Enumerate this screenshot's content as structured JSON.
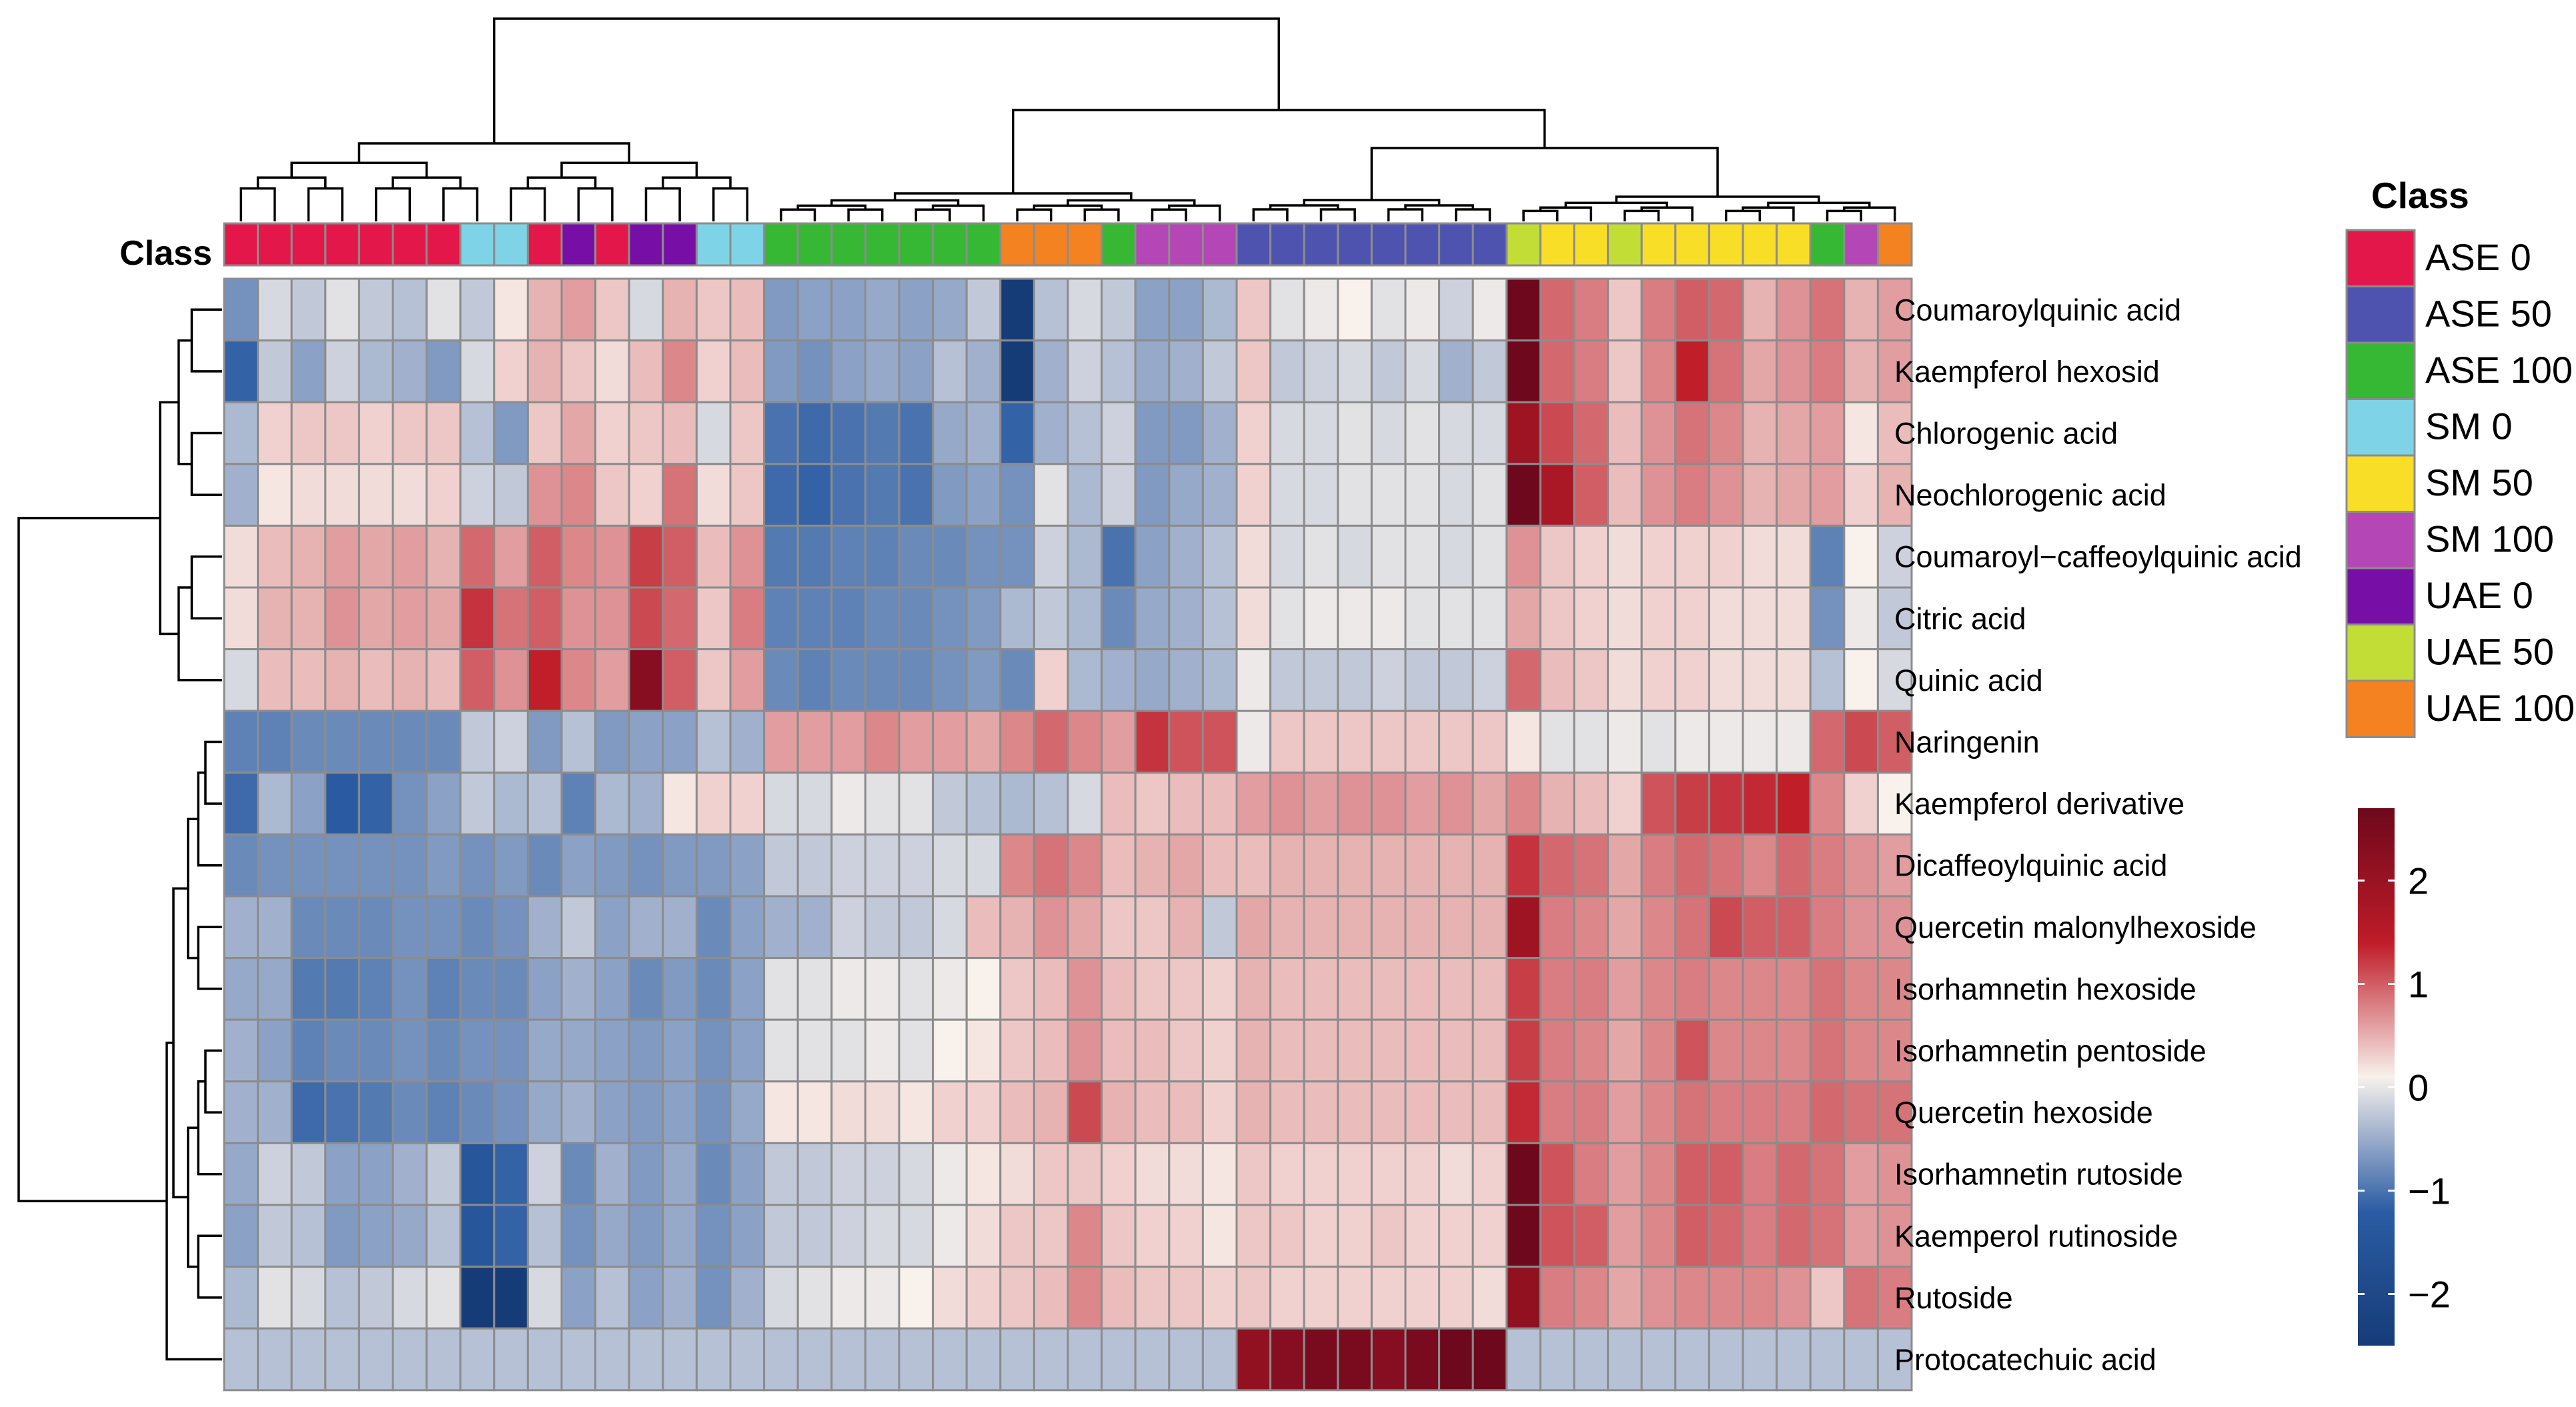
{
  "chart_data": {
    "type": "heatmap",
    "title": "",
    "class_annotation_label": "Class",
    "legend_title": "Class",
    "classes": [
      {
        "name": "ASE 0",
        "color": "#E3174A"
      },
      {
        "name": "ASE 50",
        "color": "#4F53B0"
      },
      {
        "name": "ASE 100",
        "color": "#36B834"
      },
      {
        "name": "SM 0",
        "color": "#7ED4E6"
      },
      {
        "name": "SM 50",
        "color": "#F9DE28"
      },
      {
        "name": "SM 100",
        "color": "#B446B5"
      },
      {
        "name": "UAE 0",
        "color": "#770FA6"
      },
      {
        "name": "UAE 50",
        "color": "#C2DE36"
      },
      {
        "name": "UAE 100",
        "color": "#F58221"
      }
    ],
    "column_classes": [
      "ASE 0",
      "ASE 0",
      "ASE 0",
      "ASE 0",
      "ASE 0",
      "ASE 0",
      "ASE 0",
      "SM 0",
      "SM 0",
      "ASE 0",
      "UAE 0",
      "ASE 0",
      "UAE 0",
      "UAE 0",
      "SM 0",
      "SM 0",
      "ASE 100",
      "ASE 100",
      "ASE 100",
      "ASE 100",
      "ASE 100",
      "ASE 100",
      "ASE 100",
      "UAE 100",
      "UAE 100",
      "UAE 100",
      "ASE 100",
      "SM 100",
      "SM 100",
      "SM 100",
      "ASE 50",
      "ASE 50",
      "ASE 50",
      "ASE 50",
      "ASE 50",
      "ASE 50",
      "ASE 50",
      "ASE 50",
      "UAE 50",
      "SM 50",
      "SM 50",
      "UAE 50",
      "SM 50",
      "SM 50",
      "SM 50",
      "SM 50",
      "SM 50",
      "ASE 100",
      "SM 100",
      "UAE 100"
    ],
    "rows": [
      "Coumaroylquinic acid",
      "Kaempferol hexosid",
      "Chlorogenic acid",
      "Neochlorogenic acid",
      "Coumaroyl−caffeoylquinic acid",
      "Citric acid",
      "Quinic acid",
      "Naringenin",
      "Kaempferol derivative",
      "Dicaffeoylquinic acid",
      "Quercetin malonylhexoside",
      "Isorhamnetin hexoside",
      "Isorhamnetin pentoside",
      "Quercetin hexoside",
      "Isorhamnetin rutoside",
      "Kaemperol rutinoside",
      "Rutoside",
      "Protocatechuic acid"
    ],
    "values": [
      [
        -1.2,
        -0.3,
        -0.5,
        -0.2,
        -0.5,
        -0.6,
        -0.2,
        -0.5,
        0.1,
        0.6,
        0.8,
        0.4,
        -0.3,
        0.6,
        0.4,
        0.5,
        -1.1,
        -1.0,
        -1.0,
        -0.9,
        -1.0,
        -0.9,
        -0.5,
        -2.5,
        -0.6,
        -0.3,
        -0.5,
        -1.0,
        -1.0,
        -0.7,
        0.4,
        -0.2,
        -0.1,
        0.0,
        -0.2,
        -0.1,
        -0.4,
        -0.1,
        2.8,
        1.3,
        1.1,
        0.4,
        1.1,
        1.4,
        1.3,
        0.6,
        0.9,
        1.2,
        0.6,
        0.8
      ],
      [
        -1.8,
        -0.5,
        -1.0,
        -0.4,
        -0.7,
        -0.8,
        -1.1,
        -0.3,
        0.3,
        0.6,
        0.4,
        0.2,
        0.5,
        1.0,
        0.3,
        0.5,
        -1.1,
        -1.2,
        -1.0,
        -0.9,
        -1.0,
        -0.6,
        -0.8,
        -2.6,
        -0.8,
        -0.4,
        -0.6,
        -0.9,
        -0.8,
        -0.5,
        0.4,
        -0.5,
        -0.4,
        -0.3,
        -0.5,
        -0.3,
        -0.8,
        -0.5,
        2.8,
        1.3,
        1.1,
        0.4,
        1.0,
        2.0,
        1.2,
        0.7,
        0.9,
        1.1,
        0.6,
        0.8
      ],
      [
        -0.7,
        0.3,
        0.4,
        0.4,
        0.3,
        0.4,
        0.4,
        -0.6,
        -1.1,
        0.4,
        0.7,
        0.3,
        0.4,
        0.5,
        -0.3,
        0.4,
        -1.6,
        -1.7,
        -1.6,
        -1.5,
        -1.6,
        -0.9,
        -0.8,
        -1.8,
        -0.8,
        -0.6,
        -0.4,
        -1.1,
        -1.1,
        -0.8,
        0.3,
        -0.3,
        -0.3,
        -0.2,
        -0.3,
        -0.2,
        -0.3,
        -0.3,
        2.3,
        1.6,
        1.3,
        0.5,
        0.9,
        1.2,
        1.0,
        0.6,
        0.7,
        0.8,
        0.1,
        0.5
      ],
      [
        -0.8,
        0.1,
        0.2,
        0.2,
        0.2,
        0.2,
        0.3,
        -0.4,
        -0.5,
        0.9,
        1.0,
        0.4,
        0.3,
        1.2,
        0.2,
        0.4,
        -1.7,
        -1.8,
        -1.6,
        -1.5,
        -1.6,
        -1.1,
        -1.0,
        -1.2,
        -0.2,
        -0.7,
        -0.4,
        -1.1,
        -0.9,
        -0.8,
        0.3,
        -0.3,
        -0.3,
        -0.2,
        -0.2,
        -0.2,
        -0.3,
        -0.2,
        2.7,
        2.2,
        1.4,
        0.5,
        0.9,
        1.1,
        0.9,
        0.6,
        0.7,
        0.8,
        0.3,
        0.6
      ],
      [
        0.2,
        0.5,
        0.6,
        0.8,
        0.7,
        0.8,
        0.6,
        1.3,
        0.8,
        1.4,
        1.0,
        0.9,
        1.7,
        1.4,
        0.5,
        0.9,
        -1.5,
        -1.5,
        -1.4,
        -1.4,
        -1.3,
        -1.3,
        -1.2,
        -1.2,
        -0.4,
        -0.7,
        -1.6,
        -1.0,
        -0.8,
        -0.6,
        0.2,
        -0.3,
        -0.2,
        -0.3,
        -0.2,
        -0.2,
        -0.3,
        -0.2,
        0.9,
        0.4,
        0.3,
        0.2,
        0.3,
        0.3,
        0.3,
        0.2,
        0.2,
        -1.4,
        0.0,
        -0.4
      ],
      [
        0.2,
        0.6,
        0.6,
        0.9,
        0.7,
        0.8,
        0.7,
        1.8,
        1.2,
        1.4,
        0.9,
        0.9,
        1.6,
        1.3,
        0.4,
        1.1,
        -1.4,
        -1.4,
        -1.4,
        -1.3,
        -1.3,
        -1.2,
        -1.1,
        -0.7,
        -0.5,
        -0.7,
        -1.3,
        -0.9,
        -0.8,
        -0.6,
        0.2,
        -0.2,
        -0.1,
        -0.1,
        -0.1,
        -0.2,
        -0.2,
        -0.2,
        0.7,
        0.4,
        0.3,
        0.2,
        0.3,
        0.3,
        0.2,
        0.2,
        0.2,
        -1.2,
        -0.1,
        -0.5
      ],
      [
        -0.3,
        0.5,
        0.5,
        0.6,
        0.5,
        0.6,
        0.5,
        1.4,
        0.9,
        2.0,
        1.0,
        0.8,
        2.5,
        1.4,
        0.4,
        0.8,
        -1.3,
        -1.4,
        -1.3,
        -1.3,
        -1.3,
        -1.2,
        -1.1,
        -1.3,
        0.3,
        -0.7,
        -0.8,
        -0.9,
        -0.8,
        -0.7,
        -0.1,
        -0.5,
        -0.5,
        -0.5,
        -0.4,
        -0.5,
        -0.5,
        -0.4,
        1.3,
        0.5,
        0.4,
        0.2,
        0.3,
        0.3,
        0.2,
        0.2,
        0.2,
        -0.6,
        0.0,
        -0.3
      ],
      [
        -1.4,
        -1.4,
        -1.3,
        -1.3,
        -1.3,
        -1.3,
        -1.3,
        -0.5,
        -0.4,
        -1.1,
        -0.6,
        -1.1,
        -1.0,
        -1.0,
        -0.6,
        -0.8,
        0.8,
        0.8,
        0.8,
        1.0,
        0.8,
        0.8,
        0.7,
        1.0,
        1.3,
        1.0,
        0.8,
        1.8,
        1.5,
        1.5,
        -0.1,
        0.4,
        0.4,
        0.4,
        0.4,
        0.4,
        0.4,
        0.4,
        0.1,
        -0.2,
        -0.2,
        -0.1,
        -0.2,
        -0.1,
        -0.1,
        -0.1,
        -0.1,
        1.3,
        1.6,
        1.4
      ],
      [
        -1.7,
        -0.7,
        -1.0,
        -1.9,
        -1.8,
        -1.2,
        -1.0,
        -0.5,
        -0.7,
        -0.6,
        -1.4,
        -0.7,
        -0.8,
        0.1,
        0.3,
        0.3,
        -0.3,
        -0.3,
        -0.1,
        -0.2,
        -0.2,
        -0.5,
        -0.6,
        -0.7,
        -0.6,
        -0.3,
        0.5,
        0.4,
        0.5,
        0.5,
        0.8,
        0.9,
        0.8,
        0.9,
        0.9,
        0.8,
        0.9,
        0.7,
        1.0,
        0.6,
        0.5,
        0.3,
        1.5,
        1.7,
        1.8,
        1.9,
        2.0,
        1.0,
        0.3,
        0.0
      ],
      [
        -1.3,
        -1.2,
        -1.2,
        -1.2,
        -1.2,
        -1.2,
        -1.1,
        -1.2,
        -1.1,
        -1.3,
        -1.0,
        -1.1,
        -1.2,
        -1.1,
        -1.1,
        -1.0,
        -0.5,
        -0.5,
        -0.4,
        -0.4,
        -0.4,
        -0.3,
        -0.3,
        1.0,
        1.2,
        1.0,
        0.5,
        0.6,
        0.7,
        0.5,
        0.5,
        0.6,
        0.6,
        0.6,
        0.6,
        0.6,
        0.6,
        0.6,
        1.8,
        1.3,
        1.2,
        0.7,
        1.1,
        1.3,
        1.2,
        1.0,
        1.3,
        1.1,
        0.9,
        0.8
      ],
      [
        -0.8,
        -0.8,
        -1.3,
        -1.3,
        -1.3,
        -1.2,
        -1.2,
        -1.3,
        -1.2,
        -0.8,
        -0.5,
        -1.0,
        -0.8,
        -0.8,
        -1.3,
        -1.0,
        -0.8,
        -0.8,
        -0.4,
        -0.5,
        -0.5,
        -0.3,
        0.5,
        0.6,
        0.9,
        0.7,
        0.4,
        0.4,
        0.6,
        -0.5,
        0.7,
        0.6,
        0.6,
        0.6,
        0.6,
        0.6,
        0.6,
        0.6,
        2.3,
        1.1,
        1.0,
        0.7,
        1.0,
        1.2,
        1.6,
        1.4,
        1.4,
        1.1,
        0.9,
        0.9
      ],
      [
        -0.9,
        -0.9,
        -1.5,
        -1.5,
        -1.4,
        -1.2,
        -1.4,
        -1.3,
        -1.3,
        -1.0,
        -0.8,
        -1.0,
        -1.3,
        -1.1,
        -1.3,
        -1.0,
        -0.2,
        -0.2,
        -0.1,
        -0.1,
        -0.2,
        -0.1,
        0.0,
        0.4,
        0.5,
        0.9,
        0.5,
        0.4,
        0.4,
        0.3,
        0.6,
        0.5,
        0.5,
        0.5,
        0.5,
        0.5,
        0.5,
        0.5,
        1.7,
        1.1,
        1.1,
        0.8,
        1.0,
        1.1,
        1.0,
        1.0,
        1.0,
        1.2,
        1.0,
        1.0
      ],
      [
        -0.8,
        -1.0,
        -1.4,
        -1.3,
        -1.3,
        -1.2,
        -1.3,
        -1.2,
        -1.2,
        -0.9,
        -0.9,
        -1.0,
        -1.1,
        -1.0,
        -1.2,
        -1.0,
        -0.2,
        -0.2,
        -0.2,
        -0.1,
        -0.2,
        0.0,
        0.1,
        0.4,
        0.5,
        0.9,
        0.5,
        0.5,
        0.4,
        0.3,
        0.6,
        0.5,
        0.5,
        0.5,
        0.5,
        0.5,
        0.5,
        0.5,
        1.7,
        1.1,
        1.0,
        0.7,
        1.0,
        1.5,
        1.0,
        1.0,
        1.0,
        1.2,
        1.0,
        1.0
      ],
      [
        -0.8,
        -0.8,
        -1.7,
        -1.6,
        -1.5,
        -1.3,
        -1.4,
        -1.3,
        -1.2,
        -0.9,
        -0.8,
        -1.0,
        -1.1,
        -1.0,
        -1.2,
        -0.9,
        0.1,
        0.1,
        0.2,
        0.2,
        0.1,
        0.3,
        0.3,
        0.5,
        0.6,
        1.6,
        0.6,
        0.5,
        0.5,
        0.3,
        0.6,
        0.5,
        0.5,
        0.5,
        0.5,
        0.5,
        0.5,
        0.5,
        1.9,
        1.1,
        1.1,
        0.8,
        1.0,
        1.2,
        1.1,
        1.1,
        1.1,
        1.3,
        1.2,
        1.2
      ],
      [
        -0.9,
        -0.4,
        -0.5,
        -1.0,
        -1.0,
        -0.8,
        -0.5,
        -2.0,
        -1.8,
        -0.4,
        -1.3,
        -0.8,
        -1.1,
        -0.9,
        -1.3,
        -1.0,
        -0.5,
        -0.5,
        -0.4,
        -0.4,
        -0.3,
        -0.1,
        0.1,
        0.2,
        0.4,
        0.4,
        0.3,
        0.2,
        0.2,
        0.1,
        0.4,
        0.3,
        0.3,
        0.3,
        0.3,
        0.3,
        0.2,
        0.3,
        2.7,
        1.5,
        1.1,
        0.8,
        1.0,
        1.4,
        1.4,
        1.1,
        1.3,
        1.2,
        0.8,
        0.9
      ],
      [
        -1.0,
        -0.5,
        -0.6,
        -1.1,
        -1.0,
        -0.9,
        -0.6,
        -2.0,
        -1.8,
        -0.6,
        -1.2,
        -0.9,
        -1.1,
        -0.9,
        -1.2,
        -1.0,
        -0.5,
        -0.5,
        -0.4,
        -0.3,
        -0.3,
        -0.1,
        0.2,
        0.4,
        0.4,
        1.0,
        0.4,
        0.3,
        0.3,
        0.1,
        0.4,
        0.4,
        0.3,
        0.3,
        0.4,
        0.3,
        0.3,
        0.3,
        2.7,
        1.5,
        1.4,
        0.8,
        1.0,
        1.4,
        1.3,
        1.1,
        1.3,
        1.2,
        0.8,
        0.9
      ],
      [
        -0.7,
        -0.2,
        -0.3,
        -0.6,
        -0.5,
        -0.3,
        -0.2,
        -2.6,
        -2.5,
        -0.3,
        -1.0,
        -0.6,
        -1.0,
        -0.8,
        -1.2,
        -0.8,
        -0.3,
        -0.2,
        -0.1,
        -0.1,
        0.0,
        0.2,
        0.3,
        0.4,
        0.5,
        1.0,
        0.5,
        0.4,
        0.4,
        0.3,
        0.4,
        0.3,
        0.3,
        0.3,
        0.3,
        0.3,
        0.3,
        0.2,
        2.4,
        1.1,
        1.0,
        0.7,
        0.9,
        1.0,
        1.0,
        1.0,
        0.9,
        0.4,
        1.2,
        1.1
      ],
      [
        -0.6,
        -0.6,
        -0.6,
        -0.6,
        -0.6,
        -0.6,
        -0.6,
        -0.6,
        -0.6,
        -0.6,
        -0.6,
        -0.6,
        -0.6,
        -0.6,
        -0.6,
        -0.6,
        -0.6,
        -0.6,
        -0.6,
        -0.6,
        -0.6,
        -0.6,
        -0.6,
        -0.6,
        -0.6,
        -0.6,
        -0.6,
        -0.6,
        -0.6,
        -0.6,
        2.4,
        2.5,
        2.6,
        2.6,
        2.5,
        2.6,
        2.7,
        2.7,
        -0.6,
        -0.6,
        -0.6,
        -0.6,
        -0.6,
        -0.6,
        -0.6,
        -0.6,
        -0.6,
        -0.6,
        -0.6,
        -0.6
      ]
    ],
    "color_scale": {
      "range": [
        -2.5,
        2.7
      ],
      "ticks": [
        2,
        1,
        0,
        -1,
        -2
      ],
      "tick_labels": [
        "2",
        "1",
        "0",
        "−1",
        "−2"
      ],
      "low_color": "#2B5CA4",
      "mid_color": "#F8F1EC",
      "high_color": "#BF1C28"
    }
  }
}
